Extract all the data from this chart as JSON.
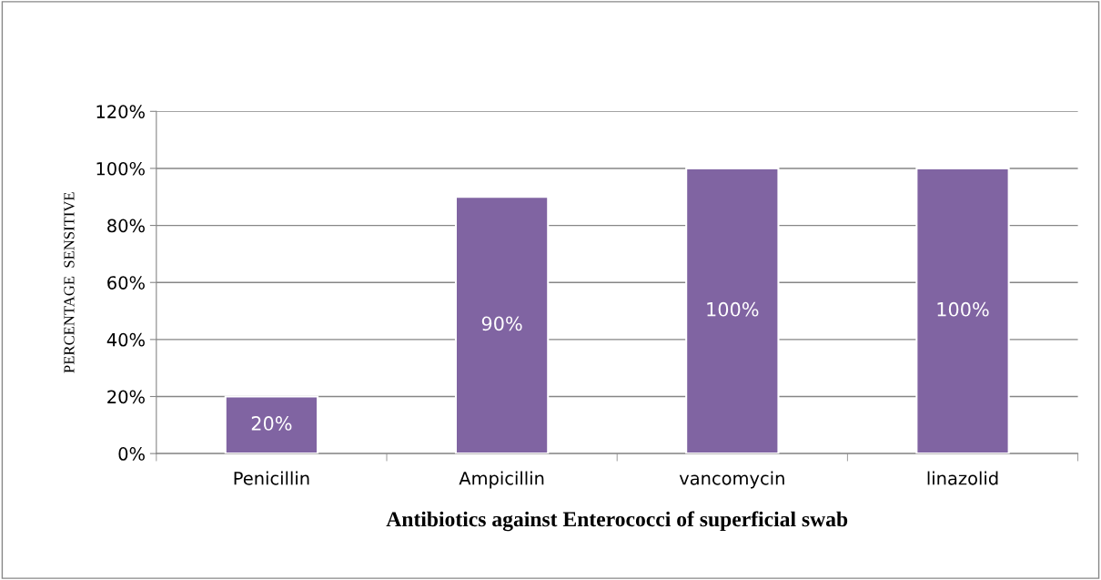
{
  "chart_data": {
    "type": "bar",
    "xlabel": "Antibiotics against Enterococci of superficial swab",
    "ylabel": "PERCENTAGE  SENSITIVE",
    "categories": [
      "Penicillin",
      "Ampicillin",
      "vancomycin",
      "linazolid"
    ],
    "values": [
      20,
      90,
      100,
      100
    ],
    "color": "#8064a2",
    "value_labels": [
      "20%",
      "90%",
      "100%",
      "100%"
    ],
    "ylim": [
      0,
      120
    ],
    "yticks": [
      {
        "value": 0,
        "label": "0%"
      },
      {
        "value": 20,
        "label": "20%"
      },
      {
        "value": 40,
        "label": "40%"
      },
      {
        "value": 60,
        "label": "60%"
      },
      {
        "value": 80,
        "label": "80%"
      },
      {
        "value": 100,
        "label": "100%"
      },
      {
        "value": 120,
        "label": "120%"
      }
    ],
    "grid": "y",
    "legend": false
  }
}
